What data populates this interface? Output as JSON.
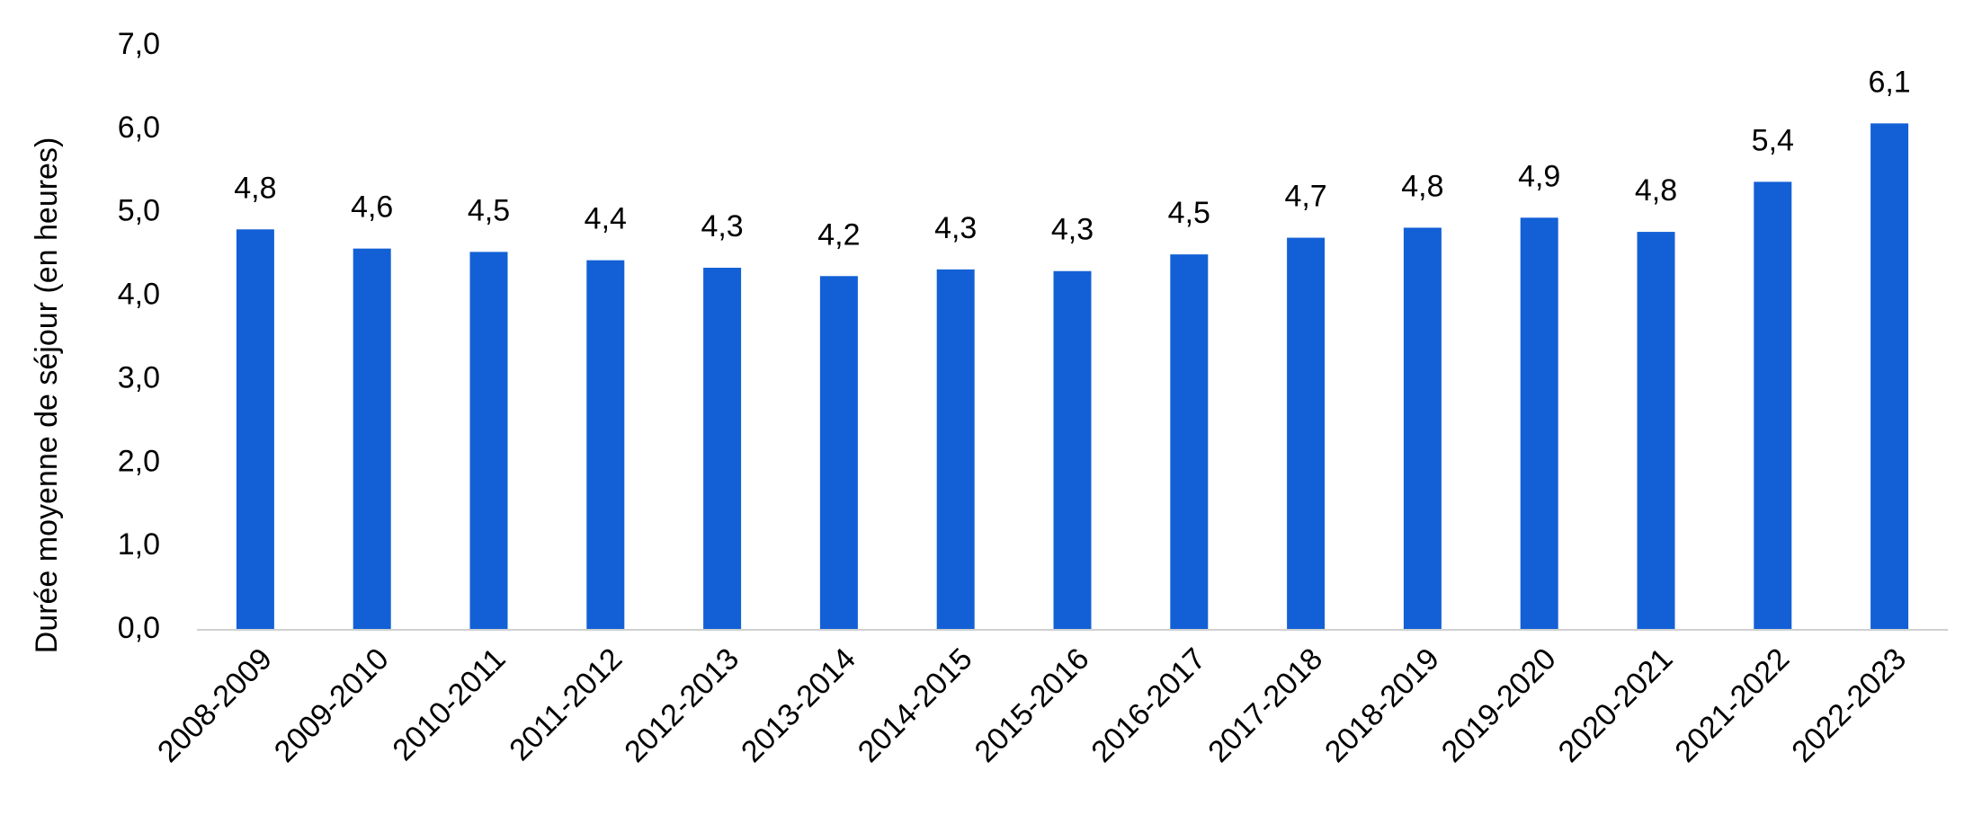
{
  "chart_data": {
    "type": "bar",
    "y_label": "Durée moyenne de séjour (en heures)",
    "categories": [
      "2008-2009",
      "2009-2010",
      "2010-2011",
      "2011-2012",
      "2012-2013",
      "2013-2014",
      "2014-2015",
      "2015-2016",
      "2016-2017",
      "2017-2018",
      "2018-2019",
      "2019-2020",
      "2020-2021",
      "2021-2022",
      "2022-2023"
    ],
    "values": [
      4.8,
      4.57,
      4.53,
      4.43,
      4.34,
      4.24,
      4.32,
      4.3,
      4.5,
      4.7,
      4.82,
      4.94,
      4.77,
      5.37,
      6.07
    ],
    "value_labels": [
      "4,8",
      "4,6",
      "4,5",
      "4,4",
      "4,3",
      "4,2",
      "4,3",
      "4,3",
      "4,5",
      "4,7",
      "4,8",
      "4,9",
      "4,8",
      "5,4",
      "6,1"
    ],
    "color": "#1360d6",
    "ylim": [
      0,
      7
    ],
    "yticks": [
      {
        "value": 0,
        "label": "0,0"
      },
      {
        "value": 1,
        "label": "1,0"
      },
      {
        "value": 2,
        "label": "2,0"
      },
      {
        "value": 3,
        "label": "3,0"
      },
      {
        "value": 4,
        "label": "4,0"
      },
      {
        "value": 5,
        "label": "5,0"
      },
      {
        "value": 6,
        "label": "6,0"
      },
      {
        "value": 7,
        "label": "7,0"
      }
    ],
    "grid": false
  }
}
